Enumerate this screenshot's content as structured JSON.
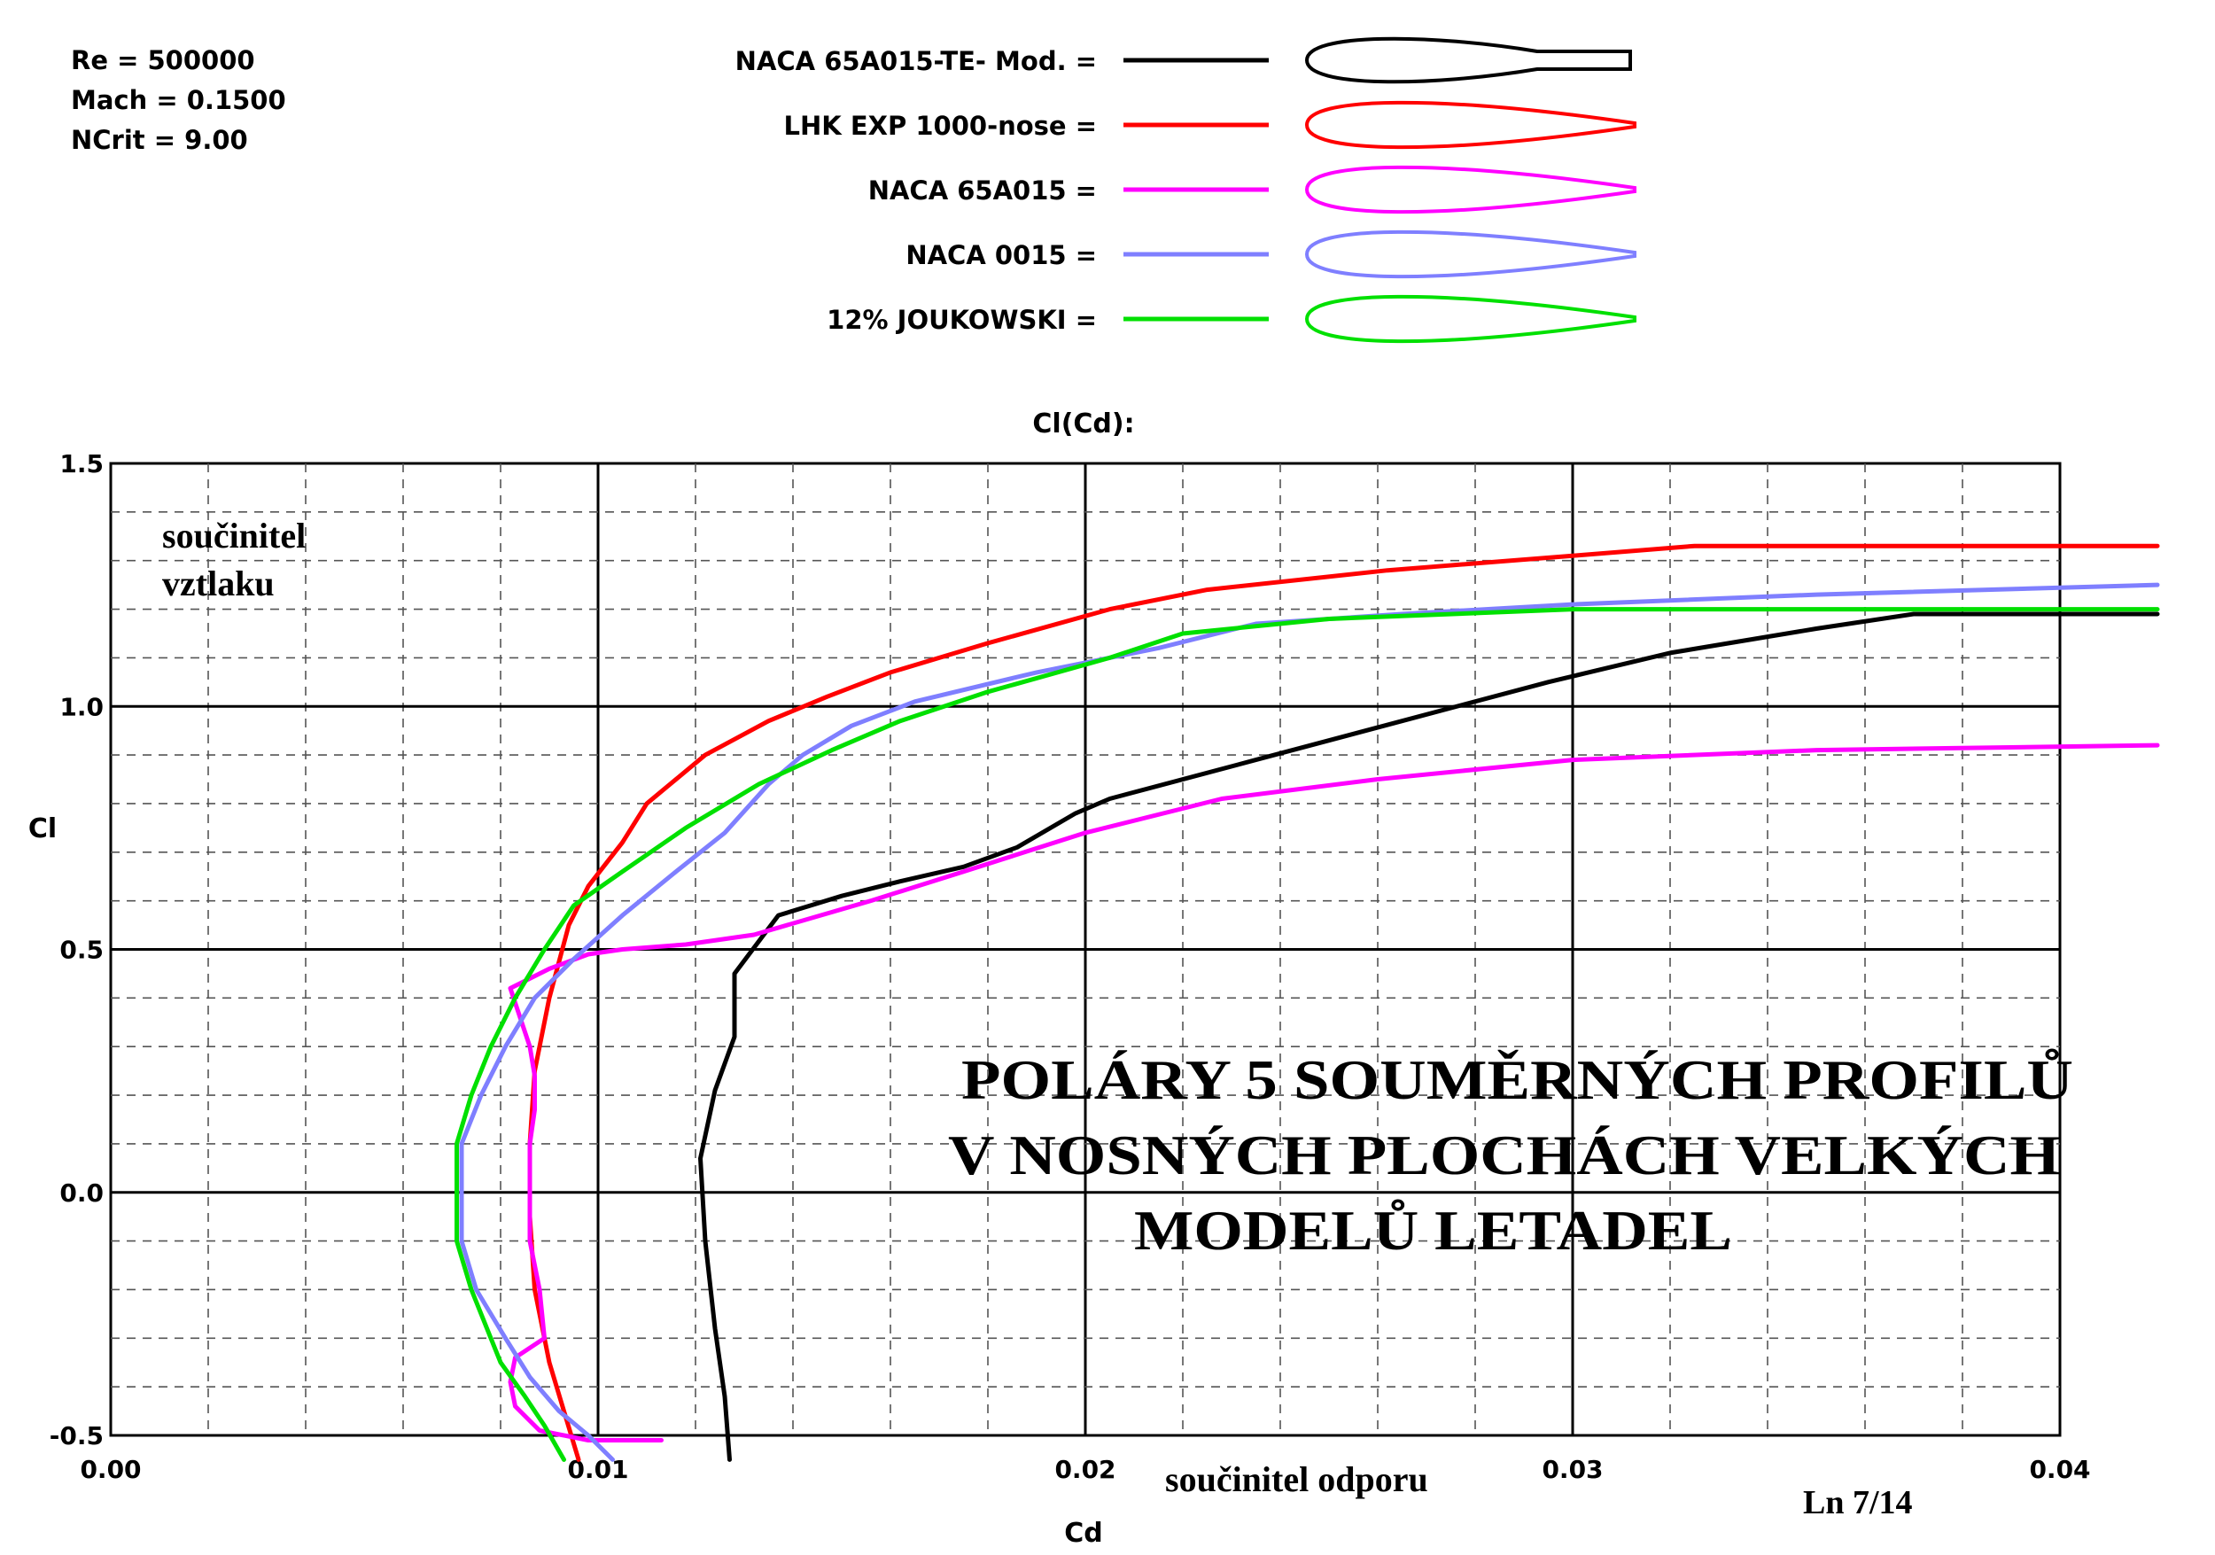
{
  "header": {
    "params": [
      "Re = 500000",
      "Mach = 0.1500",
      "NCrit = 9.00"
    ]
  },
  "legend": [
    {
      "label": "NACA 65A015-TE- Mod. =",
      "color": "#000000",
      "shape": "te-mod"
    },
    {
      "label": "LHK  EXP 1000-nose =",
      "color": "#ff0000",
      "shape": "pointed"
    },
    {
      "label": "NACA 65A015 =",
      "color": "#ff00ff",
      "shape": "pointed"
    },
    {
      "label": "NACA 0015 =",
      "color": "#7f7fff",
      "shape": "pointed"
    },
    {
      "label": "12% JOUKOWSKI =",
      "color": "#00e000",
      "shape": "pointed"
    }
  ],
  "chart_title": "Cl(Cd):",
  "overlay": {
    "ylabel_cz": [
      "součinitel",
      "vztlaku"
    ],
    "xlabel_cz": "součinitel odporu",
    "headline": [
      "POLÁRY 5 SOUMĚRNÝCH PROFILŮ",
      "V NOSNÝCH PLOCHÁCH VELKÝCH",
      "MODELŮ LETADEL"
    ],
    "page_ref": "Ln 7/14"
  },
  "chart_data": {
    "type": "line",
    "title": "Cl(Cd):",
    "xlabel": "Cd",
    "ylabel": "Cl",
    "xlim": [
      0.0,
      0.04
    ],
    "ylim": [
      -0.5,
      1.5
    ],
    "xticks": [
      "0.00",
      "0.01",
      "0.02",
      "0.03",
      "0.04"
    ],
    "yticks": [
      "-0.5",
      "0.0",
      "0.5",
      "1.0",
      "1.5"
    ],
    "grid": true,
    "series": [
      {
        "name": "NACA 65A015-TE- Mod.",
        "color": "#000000",
        "points": [
          [
            0.0127,
            -0.55
          ],
          [
            0.0126,
            -0.42
          ],
          [
            0.0124,
            -0.28
          ],
          [
            0.0122,
            -0.1
          ],
          [
            0.0121,
            0.07
          ],
          [
            0.0124,
            0.21
          ],
          [
            0.0128,
            0.32
          ],
          [
            0.0128,
            0.45
          ],
          [
            0.0134,
            0.53
          ],
          [
            0.0137,
            0.57
          ],
          [
            0.015,
            0.61
          ],
          [
            0.0162,
            0.64
          ],
          [
            0.0175,
            0.67
          ],
          [
            0.0186,
            0.71
          ],
          [
            0.0198,
            0.78
          ],
          [
            0.0205,
            0.81
          ],
          [
            0.0235,
            0.89
          ],
          [
            0.0265,
            0.97
          ],
          [
            0.0295,
            1.05
          ],
          [
            0.032,
            1.11
          ],
          [
            0.035,
            1.16
          ],
          [
            0.037,
            1.19
          ],
          [
            0.042,
            1.19
          ]
        ]
      },
      {
        "name": "LHK  EXP 1000-nose",
        "color": "#ff0000",
        "points": [
          [
            0.0096,
            -0.55
          ],
          [
            0.0093,
            -0.45
          ],
          [
            0.009,
            -0.35
          ],
          [
            0.0087,
            -0.2
          ],
          [
            0.0086,
            -0.05
          ],
          [
            0.0086,
            0.1
          ],
          [
            0.0087,
            0.25
          ],
          [
            0.009,
            0.4
          ],
          [
            0.0094,
            0.55
          ],
          [
            0.0098,
            0.63
          ],
          [
            0.0105,
            0.72
          ],
          [
            0.011,
            0.8
          ],
          [
            0.0122,
            0.9
          ],
          [
            0.0135,
            0.97
          ],
          [
            0.0147,
            1.02
          ],
          [
            0.016,
            1.07
          ],
          [
            0.018,
            1.13
          ],
          [
            0.0205,
            1.2
          ],
          [
            0.0225,
            1.24
          ],
          [
            0.0262,
            1.28
          ],
          [
            0.03,
            1.31
          ],
          [
            0.0325,
            1.33
          ],
          [
            0.042,
            1.33
          ]
        ]
      },
      {
        "name": "NACA 65A015",
        "color": "#ff00ff",
        "points": [
          [
            0.0113,
            -0.51
          ],
          [
            0.0098,
            -0.51
          ],
          [
            0.0088,
            -0.49
          ],
          [
            0.0083,
            -0.44
          ],
          [
            0.0082,
            -0.39
          ],
          [
            0.0083,
            -0.34
          ],
          [
            0.0089,
            -0.3
          ],
          [
            0.0088,
            -0.2
          ],
          [
            0.0086,
            -0.1
          ],
          [
            0.0086,
            0.0
          ],
          [
            0.0086,
            0.1
          ],
          [
            0.0087,
            0.17
          ],
          [
            0.0087,
            0.24
          ],
          [
            0.0086,
            0.3
          ],
          [
            0.0084,
            0.36
          ],
          [
            0.0082,
            0.42
          ],
          [
            0.009,
            0.46
          ],
          [
            0.0098,
            0.49
          ],
          [
            0.0105,
            0.5
          ],
          [
            0.0118,
            0.51
          ],
          [
            0.0132,
            0.53
          ],
          [
            0.0156,
            0.6
          ],
          [
            0.0175,
            0.66
          ],
          [
            0.02,
            0.74
          ],
          [
            0.0228,
            0.81
          ],
          [
            0.026,
            0.85
          ],
          [
            0.03,
            0.89
          ],
          [
            0.035,
            0.91
          ],
          [
            0.042,
            0.92
          ]
        ]
      },
      {
        "name": "NACA 0015",
        "color": "#7f7fff",
        "points": [
          [
            0.0103,
            -0.55
          ],
          [
            0.0098,
            -0.5
          ],
          [
            0.0092,
            -0.45
          ],
          [
            0.0086,
            -0.38
          ],
          [
            0.0081,
            -0.3
          ],
          [
            0.0075,
            -0.2
          ],
          [
            0.0072,
            -0.1
          ],
          [
            0.0072,
            0.0
          ],
          [
            0.0072,
            0.1
          ],
          [
            0.0076,
            0.2
          ],
          [
            0.0081,
            0.3
          ],
          [
            0.0087,
            0.4
          ],
          [
            0.0095,
            0.48
          ],
          [
            0.0105,
            0.57
          ],
          [
            0.0116,
            0.66
          ],
          [
            0.0126,
            0.74
          ],
          [
            0.0135,
            0.84
          ],
          [
            0.0142,
            0.9
          ],
          [
            0.0152,
            0.96
          ],
          [
            0.0165,
            1.01
          ],
          [
            0.019,
            1.07
          ],
          [
            0.0215,
            1.12
          ],
          [
            0.0235,
            1.17
          ],
          [
            0.0265,
            1.19
          ],
          [
            0.03,
            1.21
          ],
          [
            0.035,
            1.23
          ],
          [
            0.042,
            1.25
          ]
        ]
      },
      {
        "name": "12% JOUKOWSKI",
        "color": "#00e000",
        "points": [
          [
            0.0093,
            -0.55
          ],
          [
            0.0089,
            -0.48
          ],
          [
            0.0085,
            -0.42
          ],
          [
            0.008,
            -0.35
          ],
          [
            0.0074,
            -0.2
          ],
          [
            0.0071,
            -0.1
          ],
          [
            0.0071,
            0.0
          ],
          [
            0.0071,
            0.1
          ],
          [
            0.0074,
            0.2
          ],
          [
            0.0078,
            0.3
          ],
          [
            0.0083,
            0.4
          ],
          [
            0.0089,
            0.5
          ],
          [
            0.0095,
            0.59
          ],
          [
            0.0105,
            0.66
          ],
          [
            0.0118,
            0.75
          ],
          [
            0.0133,
            0.84
          ],
          [
            0.0148,
            0.91
          ],
          [
            0.0162,
            0.97
          ],
          [
            0.018,
            1.03
          ],
          [
            0.0205,
            1.1
          ],
          [
            0.022,
            1.15
          ],
          [
            0.025,
            1.18
          ],
          [
            0.03,
            1.2
          ],
          [
            0.035,
            1.2
          ],
          [
            0.042,
            1.2
          ]
        ]
      }
    ]
  }
}
